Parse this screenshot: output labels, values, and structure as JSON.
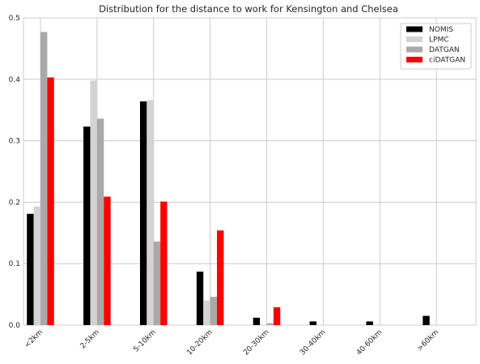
{
  "chart_data": {
    "type": "bar",
    "title": "Distribution for the distance to work for Kensington and Chelsea",
    "xlabel": "",
    "ylabel": "",
    "categories": [
      "<2km",
      "2-5km",
      "5-10km",
      "10-20km",
      "20-30km",
      "30-40km",
      "40-60km",
      ">60km"
    ],
    "ylim": [
      0,
      0.5
    ],
    "yticks": [
      "0.0",
      "0.1",
      "0.2",
      "0.3",
      "0.4",
      "0.5"
    ],
    "grid": true,
    "legend_position": "top-right",
    "series": [
      {
        "name": "NOMIS",
        "color": "#000000",
        "values": [
          0.181,
          0.323,
          0.364,
          0.087,
          0.012,
          0.006,
          0.006,
          0.015
        ]
      },
      {
        "name": "LPMC",
        "color": "#d3d3d3",
        "values": [
          0.193,
          0.398,
          0.366,
          0.04,
          0.0,
          0.0,
          0.0,
          0.0
        ]
      },
      {
        "name": "DATGAN",
        "color": "#a9a9a9",
        "values": [
          0.477,
          0.336,
          0.136,
          0.046,
          0.003,
          0.0,
          0.0,
          0.0
        ]
      },
      {
        "name": "ciDATGAN",
        "color": "#ff0000",
        "values": [
          0.403,
          0.209,
          0.201,
          0.154,
          0.029,
          0.0,
          0.0,
          0.0
        ]
      }
    ]
  }
}
